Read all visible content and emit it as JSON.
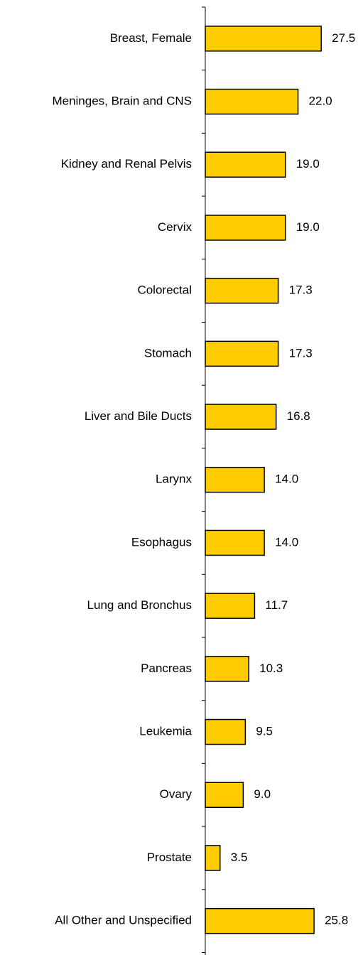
{
  "chart_data": {
    "type": "bar",
    "orientation": "horizontal",
    "categories": [
      "Breast, Female",
      "Meninges, Brain and CNS",
      "Kidney and Renal Pelvis",
      "Cervix",
      "Colorectal",
      "Stomach",
      "Liver and Bile Ducts",
      "Larynx",
      "Esophagus",
      "Lung and Bronchus",
      "Pancreas",
      "Leukemia",
      "Ovary",
      "Prostate",
      "All Other and Unspecified"
    ],
    "values": [
      27.5,
      22.0,
      19.0,
      19.0,
      17.3,
      17.3,
      16.8,
      14.0,
      14.0,
      11.7,
      10.3,
      9.5,
      9.0,
      3.5,
      25.8
    ],
    "value_labels": [
      "27.5",
      "22.0",
      "19.0",
      "19.0",
      "17.3",
      "17.3",
      "16.8",
      "14.0",
      "14.0",
      "11.7",
      "10.3",
      "9.5",
      "9.0",
      "3.5",
      "25.8"
    ],
    "color": "#ffcc00",
    "xlim": [
      0,
      30
    ]
  }
}
